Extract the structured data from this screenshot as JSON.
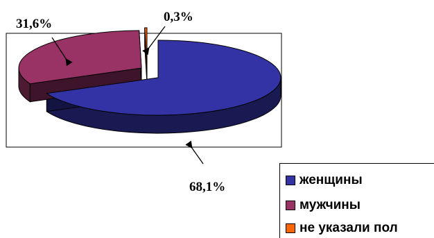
{
  "chart_data": {
    "type": "pie",
    "categories": [
      "женщины",
      "мужчины",
      "не указали пол"
    ],
    "values": [
      68.1,
      31.6,
      0.3
    ],
    "data_labels": [
      "68,1%",
      "31,6%",
      "0,3%"
    ],
    "colors": [
      "#3333a6",
      "#993366",
      "#ff6600"
    ],
    "legend_placement": "bottom-right",
    "three_d": true
  }
}
